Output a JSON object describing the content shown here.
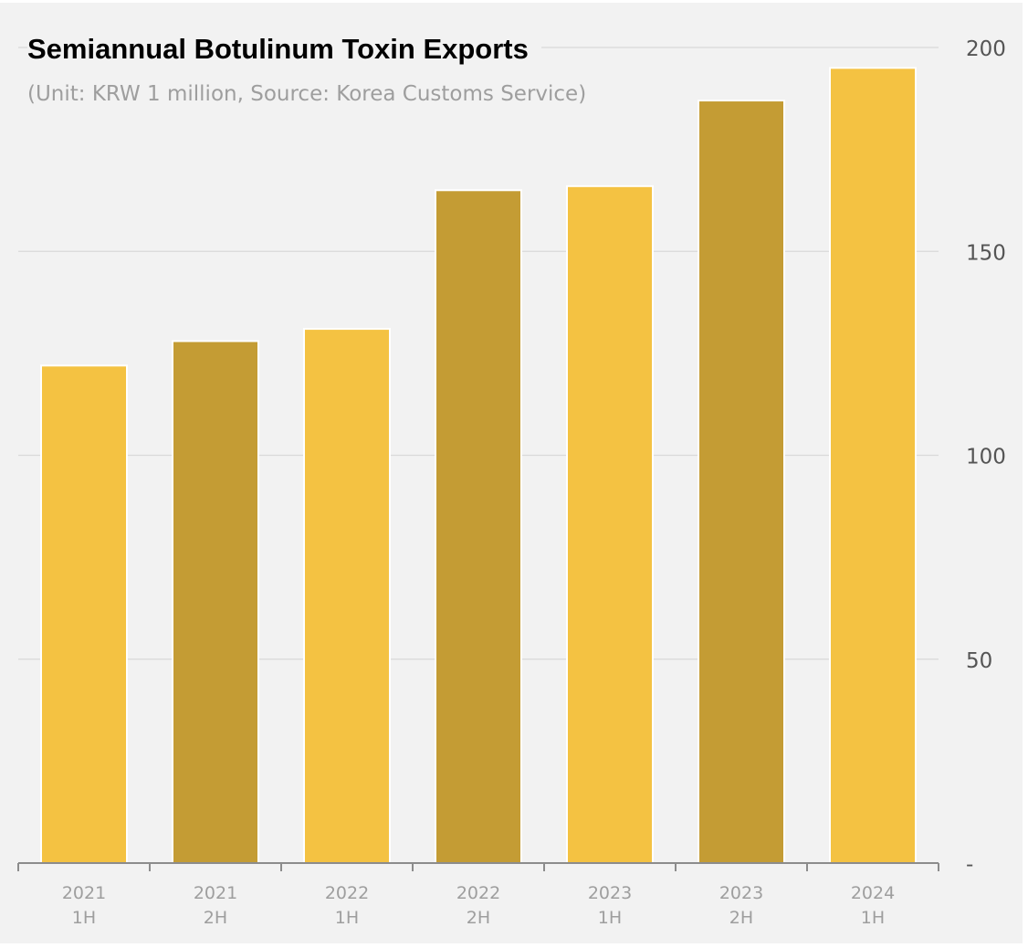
{
  "chart_data": {
    "type": "bar",
    "title": "Semiannual Botulinum Toxin Exports",
    "subtitle": "(Unit: KRW 1 million, Source: Korea Customs Service)",
    "xlabel": "",
    "ylabel": "",
    "categories": [
      [
        "2021",
        "1H"
      ],
      [
        "2021",
        "2H"
      ],
      [
        "2022",
        "1H"
      ],
      [
        "2022",
        "2H"
      ],
      [
        "2023",
        "1H"
      ],
      [
        "2023",
        "2H"
      ],
      [
        "2024",
        "1H"
      ]
    ],
    "values": [
      122,
      128,
      131,
      165,
      166,
      187,
      195
    ],
    "bar_colors": [
      "#f4c242",
      "#c49c34",
      "#f4c242",
      "#c49c34",
      "#f4c242",
      "#c49c34",
      "#f4c242"
    ],
    "ylim": [
      0,
      200
    ],
    "yticks": [
      {
        "value": 0,
        "label": "-"
      },
      {
        "value": 50,
        "label": "50"
      },
      {
        "value": 100,
        "label": "100"
      },
      {
        "value": 150,
        "label": "150"
      },
      {
        "value": 200,
        "label": "200"
      }
    ],
    "y_axis_side": "right",
    "grid": true,
    "gridline_color": "#d9d9d9",
    "axis_color": "#8c8c8c",
    "tick_label_color": "#555555",
    "category_label_color": "#9e9e9e",
    "legend": "none"
  }
}
